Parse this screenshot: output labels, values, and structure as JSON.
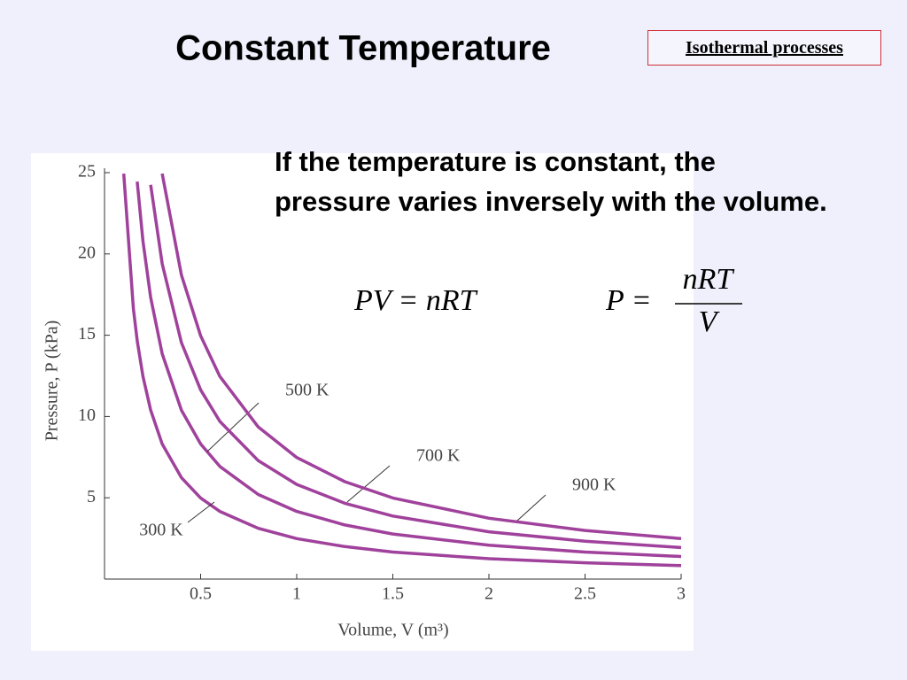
{
  "title": "Constant Temperature",
  "link": "Isothermal processes",
  "paragraph": "If the temperature is constant, the pressure varies inversely with the volume.",
  "equations": {
    "ideal_gas": "PV = nRT",
    "pressure": {
      "lhs": "P =",
      "numerator": "nRT",
      "denominator": "V"
    }
  },
  "chart_data": {
    "type": "line",
    "x_label": "Volume, V (m³)",
    "y_label": "Pressure, P (kPa)",
    "xlim": [
      0,
      3
    ],
    "ylim": [
      0,
      25
    ],
    "xticks": [
      0.5,
      1,
      1.5,
      2,
      2.5,
      3
    ],
    "yticks": [
      5,
      10,
      15,
      20,
      25
    ],
    "x": [
      0.1,
      0.15,
      0.17,
      0.2,
      0.24,
      0.3,
      0.4,
      0.5,
      0.6,
      0.8,
      1,
      1.25,
      1.5,
      2,
      2.5,
      3
    ],
    "series": [
      {
        "name": "300 K",
        "color": "#a0429c",
        "values": [
          24.94,
          16.63,
          14.67,
          12.47,
          10.39,
          8.31,
          6.24,
          4.99,
          4.16,
          3.12,
          2.49,
          2.0,
          1.66,
          1.25,
          1.0,
          0.83
        ]
      },
      {
        "name": "500 K",
        "color": "#a0429c",
        "values": [
          null,
          null,
          24.45,
          20.79,
          17.32,
          13.86,
          10.39,
          8.31,
          6.93,
          5.2,
          4.16,
          3.33,
          2.77,
          2.08,
          1.66,
          1.39
        ]
      },
      {
        "name": "700 K",
        "color": "#a0429c",
        "values": [
          null,
          null,
          null,
          null,
          24.25,
          19.4,
          14.55,
          11.64,
          9.7,
          7.28,
          5.82,
          4.66,
          3.88,
          2.91,
          2.33,
          1.94
        ]
      },
      {
        "name": "900 K",
        "color": "#a0429c",
        "values": [
          null,
          null,
          null,
          null,
          null,
          24.94,
          18.71,
          14.97,
          12.47,
          9.35,
          7.48,
          5.99,
          4.99,
          3.74,
          2.99,
          2.49
        ]
      }
    ]
  }
}
